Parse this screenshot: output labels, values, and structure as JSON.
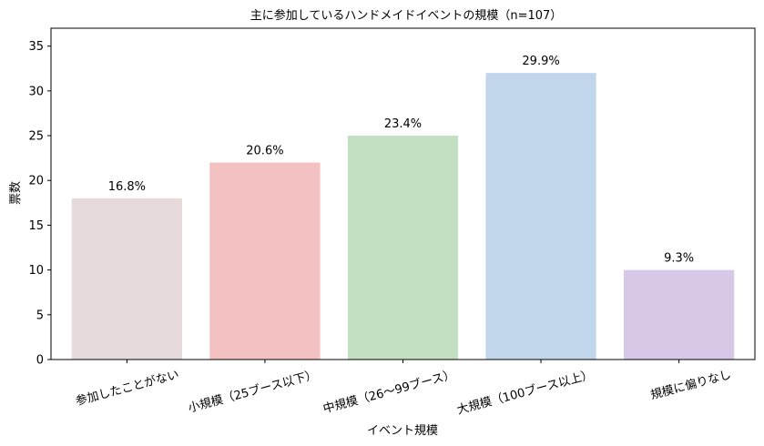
{
  "chart_data": {
    "type": "bar",
    "title": "主に参加しているハンドメイドイベントの規模（n=107）",
    "xlabel": "イベント規模",
    "ylabel": "票数",
    "categories": [
      "参加したことがない",
      "小規模（25ブース以下）",
      "中規模（26〜99ブース）",
      "大規模（100ブース以上）",
      "規模に偏りなし"
    ],
    "values": [
      18,
      22,
      25,
      32,
      10
    ],
    "data_labels": [
      "16.8%",
      "20.6%",
      "23.4%",
      "29.9%",
      "9.3%"
    ],
    "colors": [
      "#e6d9d9",
      "#f3c1c1",
      "#c3e0c3",
      "#c2d6eb",
      "#d8c8e8"
    ],
    "yticks": [
      0,
      5,
      10,
      15,
      20,
      25,
      30,
      35
    ],
    "ylim": [
      0,
      37
    ],
    "grid": false,
    "legend": "none"
  }
}
